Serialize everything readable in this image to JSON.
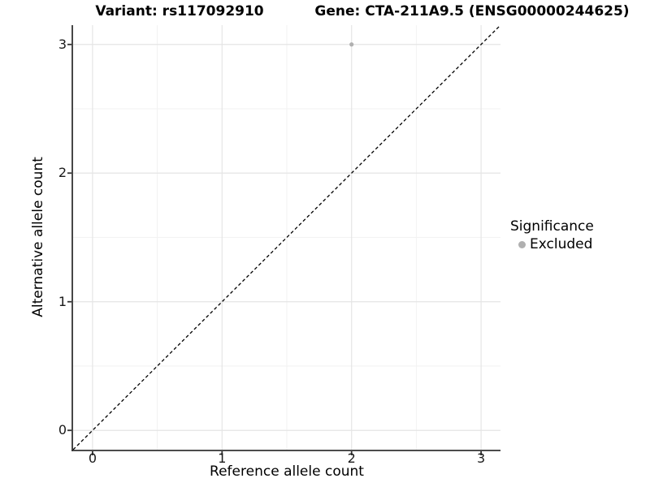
{
  "titles": {
    "variant": "Variant: rs117092910",
    "gene": "Gene: CTA-211A9.5 (ENSG00000244625)"
  },
  "legend": {
    "title": "Significance",
    "items": [
      {
        "label": "Excluded",
        "color": "#b0b0b0",
        "marker": "circle"
      }
    ]
  },
  "colors": {
    "background": "#ffffff",
    "grid_major": "#e5e5e5",
    "grid_minor": "#f2f2f2",
    "axis_line": "#333333",
    "reference_line": "#000000",
    "point": "#b0b0b0"
  },
  "chart_data": {
    "type": "scatter",
    "xlabel": "Reference allele count",
    "ylabel": "Alternative allele count",
    "xlim": [
      -0.15,
      3.15
    ],
    "ylim": [
      -0.15,
      3.15
    ],
    "x_ticks": [
      0,
      1,
      2,
      3
    ],
    "y_ticks": [
      0,
      1,
      2,
      3
    ],
    "x_minor_ticks": [
      0.5,
      1.5,
      2.5
    ],
    "y_minor_ticks": [
      0.5,
      1.5,
      2.5
    ],
    "grid": "on",
    "legend_position": "right",
    "series": [
      {
        "name": "Excluded",
        "color": "#b0b0b0",
        "points": [
          {
            "x": 2,
            "y": 3
          }
        ]
      }
    ],
    "reference_line": {
      "kind": "identity",
      "x1": -0.15,
      "y1": -0.15,
      "x2": 3.15,
      "y2": 3.15,
      "style": "dashed",
      "color": "#000000"
    }
  }
}
